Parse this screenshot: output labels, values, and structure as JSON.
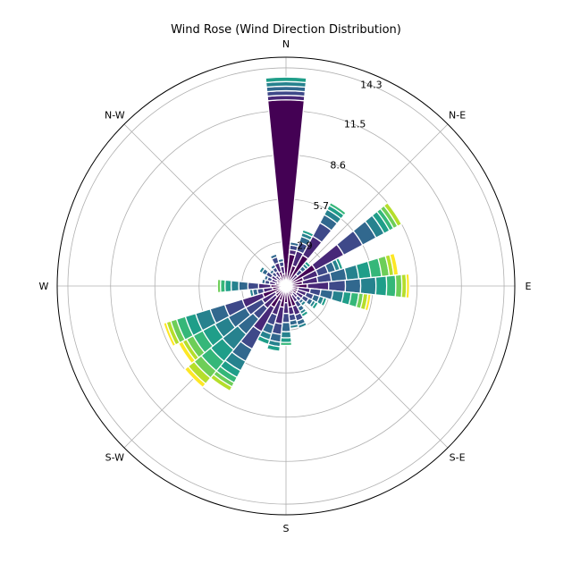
{
  "chart_data": {
    "type": "bar",
    "subtype": "polar-stacked (wind rose)",
    "title": "Wind Rose (Wind Direction Distribution)",
    "direction_labels": [
      "N",
      "N-E",
      "E",
      "S-E",
      "S",
      "S-W",
      "W",
      "N-W"
    ],
    "radial_ticks": [
      "2.9",
      "5.7",
      "8.6",
      "11.5",
      "14.3"
    ],
    "radial_tick_values": [
      2.9,
      5.7,
      8.6,
      11.5,
      14.3
    ],
    "rmax": 15.0,
    "bins_count": 10,
    "colormap": [
      "#440154",
      "#482878",
      "#3e4989",
      "#31688e",
      "#26828e",
      "#1f9e89",
      "#35b779",
      "#6ece58",
      "#b5de2b",
      "#fde725"
    ],
    "sector_width_deg": 11.25,
    "series": [
      {
        "direction_deg": 0.0,
        "values": [
          12.2,
          0.3,
          0.3,
          0.3,
          0.3,
          0.3
        ]
      },
      {
        "direction_deg": 11.25,
        "values": [
          2.1,
          0.3,
          0.3,
          0.2
        ]
      },
      {
        "direction_deg": 22.5,
        "values": [
          1.4,
          1.0,
          0.6,
          0.4,
          0.25,
          0.2
        ]
      },
      {
        "direction_deg": 33.75,
        "values": [
          2.3,
          1.4,
          1.0,
          0.6,
          0.4,
          0.3,
          0.2
        ]
      },
      {
        "direction_deg": 45.0,
        "values": [
          0.5,
          0.5,
          0.4,
          0.3,
          0.2,
          0.2
        ]
      },
      {
        "direction_deg": 56.25,
        "values": [
          2.2,
          2.1,
          1.4,
          1.0,
          0.6,
          0.4,
          0.3,
          0.3,
          0.3
        ]
      },
      {
        "direction_deg": 67.5,
        "values": [
          1.2,
          1.0,
          0.7,
          0.5,
          0.3,
          0.2
        ]
      },
      {
        "direction_deg": 78.75,
        "values": [
          1.1,
          1.0,
          0.9,
          1.0,
          0.8,
          0.8,
          0.7,
          0.5,
          0.3,
          0.3
        ]
      },
      {
        "direction_deg": 90.0,
        "values": [
          1.4,
          1.4,
          1.1,
          1.0,
          1.0,
          0.7,
          0.6,
          0.4,
          0.3,
          0.2
        ]
      },
      {
        "direction_deg": 101.25,
        "values": [
          0.8,
          0.8,
          0.7,
          0.8,
          0.7,
          0.5,
          0.5,
          0.3,
          0.3,
          0.2
        ]
      },
      {
        "direction_deg": 112.5,
        "values": [
          0.8,
          0.6,
          0.5,
          0.4,
          0.3,
          0.2
        ]
      },
      {
        "direction_deg": 123.75,
        "values": [
          0.8,
          0.5,
          0.4,
          0.3,
          0.2,
          0.2
        ]
      },
      {
        "direction_deg": 135.0,
        "values": [
          0.6,
          0.4,
          0.3,
          0.2,
          0.2
        ]
      },
      {
        "direction_deg": 146.25,
        "values": [
          0.7,
          0.5,
          0.4,
          0.3,
          0.2,
          0.2
        ]
      },
      {
        "direction_deg": 157.5,
        "values": [
          1.4,
          0.6,
          0.4,
          0.3,
          0.2
        ]
      },
      {
        "direction_deg": 168.75,
        "values": [
          1.4,
          0.5,
          0.4,
          0.3,
          0.2
        ]
      },
      {
        "direction_deg": 180.0,
        "values": [
          1.1,
          0.7,
          0.6,
          0.6,
          0.4,
          0.3,
          0.2
        ]
      },
      {
        "direction_deg": 191.25,
        "values": [
          1.4,
          1.1,
          0.7,
          0.5,
          0.3,
          0.3
        ]
      },
      {
        "direction_deg": 202.5,
        "values": [
          1.0,
          1.0,
          0.7,
          0.6,
          0.4,
          0.3
        ]
      },
      {
        "direction_deg": 213.75,
        "values": [
          1.6,
          1.8,
          1.3,
          0.9,
          0.7,
          0.5,
          0.4,
          0.3,
          0.3
        ]
      },
      {
        "direction_deg": 225.0,
        "values": [
          0.9,
          1.0,
          0.9,
          1.3,
          1.3,
          1.0,
          0.8,
          0.6,
          0.5,
          0.3
        ]
      },
      {
        "direction_deg": 236.25,
        "values": [
          0.8,
          1.0,
          1.2,
          1.3,
          1.0,
          0.9,
          0.7,
          0.5,
          0.3,
          0.3
        ]
      },
      {
        "direction_deg": 247.5,
        "values": [
          1.6,
          1.4,
          1.2,
          1.0,
          1.0,
          0.7,
          0.6,
          0.4,
          0.3,
          0.2
        ]
      },
      {
        "direction_deg": 258.75,
        "values": [
          0.9,
          0.6,
          0.4,
          0.3,
          0.2
        ]
      },
      {
        "direction_deg": 270.0,
        "values": [
          1.0,
          0.8,
          0.7,
          0.6,
          0.5,
          0.4,
          0.3,
          0.2
        ]
      },
      {
        "direction_deg": 281.25,
        "values": [
          0.7,
          0.4,
          0.3,
          0.2
        ]
      },
      {
        "direction_deg": 292.5,
        "values": [
          0.6,
          0.4,
          0.3,
          0.2
        ]
      },
      {
        "direction_deg": 303.75,
        "values": [
          0.7,
          0.4,
          0.4,
          0.3,
          0.2
        ]
      },
      {
        "direction_deg": 315.0,
        "values": [
          0.5,
          0.4,
          0.3,
          0.2
        ]
      },
      {
        "direction_deg": 326.25,
        "values": [
          0.7,
          0.4,
          0.3,
          0.2
        ]
      },
      {
        "direction_deg": 337.5,
        "values": [
          1.0,
          0.6,
          0.4,
          0.2
        ]
      },
      {
        "direction_deg": 348.75,
        "values": [
          0.8,
          0.5,
          0.3,
          0.2
        ]
      }
    ]
  }
}
